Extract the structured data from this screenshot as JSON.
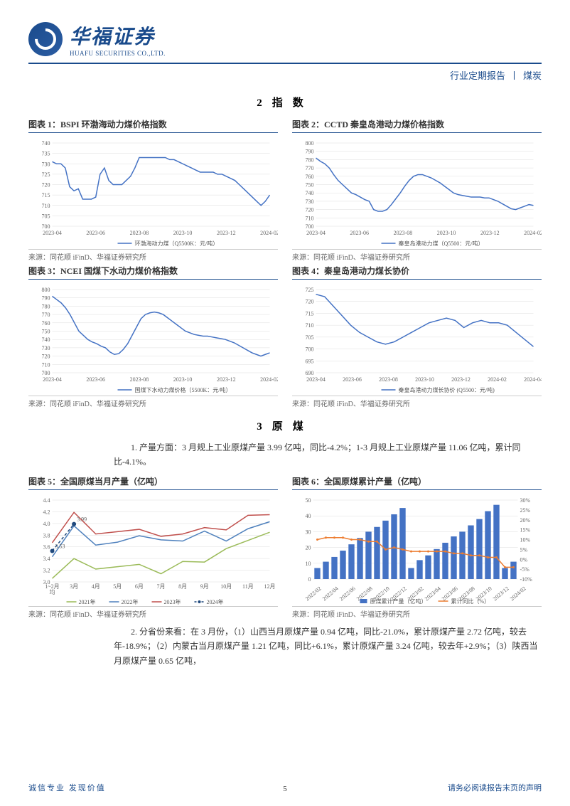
{
  "header": {
    "company_cn": "华福证券",
    "company_en": "HUAFU SECURITIES CO.,LTD.",
    "doc_type": "行业定期报告",
    "doc_category": "煤炭"
  },
  "section2": {
    "number": "2",
    "title": "指数"
  },
  "chart1": {
    "title": "图表 1：BSPI 环渤海动力煤价格指数",
    "type": "line",
    "legend": "环渤海动力煤（Q5500K：元/吨）",
    "xlabels": [
      "2023-04",
      "2023-06",
      "2023-08",
      "2023-10",
      "2023-12",
      "2024-02"
    ],
    "ymin": 700,
    "ymax": 740,
    "ytick": 5,
    "values": [
      731,
      730,
      730,
      728,
      719,
      717,
      718,
      713,
      713,
      713,
      714,
      725,
      728,
      722,
      720,
      720,
      720,
      722,
      724,
      728,
      733,
      733,
      733,
      733,
      733,
      733,
      733,
      732,
      732,
      731,
      730,
      729,
      728,
      727,
      726,
      726,
      726,
      726,
      725,
      725,
      724,
      723,
      722,
      720,
      718,
      716,
      714,
      712,
      710,
      712,
      715
    ],
    "line_color": "#4472c4",
    "bg": "#ffffff",
    "source": "来源：同花顺 iFinD、华福证券研究所"
  },
  "chart2": {
    "title": "图表 2：CCTD 秦皇岛港动力煤价格指数",
    "type": "line",
    "legend": "秦皇岛港动力煤（Q5500：元/吨）",
    "xlabels": [
      "2023-04",
      "2023-06",
      "2023-08",
      "2023-10",
      "2023-12",
      "2024-02"
    ],
    "ymin": 700,
    "ymax": 800,
    "ytick": 10,
    "values": [
      782,
      778,
      775,
      770,
      762,
      755,
      750,
      745,
      740,
      738,
      735,
      732,
      730,
      720,
      718,
      718,
      720,
      726,
      733,
      740,
      748,
      755,
      760,
      762,
      762,
      760,
      758,
      755,
      752,
      748,
      744,
      740,
      738,
      737,
      736,
      735,
      735,
      735,
      734,
      734,
      732,
      730,
      727,
      724,
      721,
      720,
      722,
      724,
      726,
      725
    ],
    "line_color": "#4472c4",
    "bg": "#ffffff",
    "source": "来源：同花顺 iFinD、华福证券研究所"
  },
  "chart3": {
    "title": "图表 3：NCEI 国煤下水动力煤价格指数",
    "type": "line",
    "legend": "国煤下水动力煤价格（5500K：元/吨）",
    "xlabels": [
      "2023-04",
      "2023-06",
      "2023-08",
      "2023-10",
      "2023-12",
      "2024-02"
    ],
    "ymin": 700,
    "ymax": 800,
    "ytick": 10,
    "values": [
      792,
      788,
      784,
      778,
      770,
      760,
      750,
      745,
      740,
      737,
      735,
      732,
      730,
      725,
      722,
      723,
      728,
      735,
      745,
      755,
      765,
      770,
      772,
      773,
      772,
      770,
      766,
      762,
      758,
      754,
      750,
      748,
      746,
      745,
      744,
      744,
      743,
      742,
      741,
      740,
      738,
      736,
      733,
      730,
      727,
      724,
      722,
      720,
      722,
      724
    ],
    "line_color": "#4472c4",
    "bg": "#ffffff",
    "source": "来源：同花顺 iFinD、华福证券研究所"
  },
  "chart4": {
    "title": "图表 4：秦皇岛港动力煤长协价",
    "type": "line",
    "legend": "秦皇岛港动力煤长协价 (Q5500：元/吨)",
    "xlabels": [
      "2023-04",
      "2023-06",
      "2023-08",
      "2023-10",
      "2023-12",
      "2024-02",
      "2024-04"
    ],
    "ymin": 690,
    "ymax": 725,
    "ytick": 5,
    "values": [
      723,
      722,
      718,
      714,
      710,
      707,
      705,
      703,
      702,
      703,
      705,
      707,
      709,
      711,
      712,
      713,
      712,
      709,
      711,
      712,
      711,
      711,
      710,
      707,
      704,
      701
    ],
    "line_color": "#4472c4",
    "bg": "#ffffff",
    "source": "来源：同花顺 iFinD、华福证券研究所"
  },
  "section3": {
    "number": "3",
    "title": "原煤",
    "para1": "1. 产量方面：3 月规上工业原煤产量 3.99 亿吨，同比-4.2%；1-3 月规上工业原煤产量 11.06 亿吨，累计同比-4.1%。",
    "para2": "2. 分省份来看：在 3 月份，（1）山西当月原煤产量 0.94 亿吨，同比-21.0%，累计原煤产量 2.72 亿吨，较去年-18.9%；（2）内蒙古当月原煤产量 1.21 亿吨，同比+6.1%，累计原煤产量 3.24 亿吨，较去年+2.9%；（3）陕西当月原煤产量 0.65 亿吨，"
  },
  "chart5": {
    "title": "图表 5：全国原煤当月产量（亿吨）",
    "type": "multiline",
    "xlabels": [
      "1~2月\n均",
      "3月",
      "4月",
      "5月",
      "6月",
      "7月",
      "8月",
      "9月",
      "10月",
      "11月",
      "12月"
    ],
    "ymin": 3.0,
    "ymax": 4.4,
    "ytick": 0.2,
    "series": [
      {
        "name": "2021年",
        "color": "#9bbb59",
        "values": [
          3.06,
          3.4,
          3.22,
          3.26,
          3.3,
          3.14,
          3.35,
          3.34,
          3.57,
          3.71,
          3.85
        ]
      },
      {
        "name": "2022年",
        "color": "#4f81bd",
        "values": [
          3.43,
          3.96,
          3.63,
          3.68,
          3.79,
          3.72,
          3.7,
          3.87,
          3.7,
          3.91,
          4.03
        ]
      },
      {
        "name": "2023年",
        "color": "#c0504d",
        "values": [
          3.67,
          4.19,
          3.82,
          3.86,
          3.9,
          3.78,
          3.82,
          3.93,
          3.89,
          4.14,
          4.15
        ]
      },
      {
        "name": "2024年",
        "color": "#1f497d",
        "values": [
          3.53,
          3.99
        ],
        "dashed": true,
        "marker": true,
        "labels": [
          "3.53",
          "3.99"
        ]
      }
    ],
    "source": "来源：同花顺 iFinD、华福证券研究所"
  },
  "chart6": {
    "title": "图表 6：全国原煤累计产量（亿吨）",
    "type": "bar_line",
    "xlabels": [
      "2022/02",
      "2022/04",
      "2022/06",
      "2022/08",
      "2022/10",
      "2022/12",
      "2023/02",
      "2023/04",
      "2023/06",
      "2023/08",
      "2023/10",
      "2023/12",
      "2024/02"
    ],
    "y1min": 0,
    "y1max": 50,
    "y1tick": 10,
    "y2min": -10,
    "y2max": 30,
    "y2tick": 5,
    "bar_values": [
      7,
      11,
      14,
      18,
      22,
      26,
      30,
      33,
      37,
      41,
      45,
      7,
      12,
      15,
      19,
      23,
      27,
      30,
      34,
      38,
      43,
      47,
      7,
      11
    ],
    "bar_color": "#4472c4",
    "line_values": [
      10,
      11,
      11,
      11,
      10,
      10,
      9,
      9,
      5,
      6,
      5,
      4,
      4,
      4,
      4,
      4,
      3,
      3,
      2,
      2,
      1,
      1,
      -4,
      -4
    ],
    "line_color": "#ed7d31",
    "legend_bar": "原煤累计产量（亿吨）",
    "legend_line": "累计同比（%）",
    "source": "来源：同花顺 iFinD、华福证券研究所"
  },
  "footer": {
    "left": "诚信专业  发现价值",
    "right": "请务必阅读报告末页的声明",
    "page": "5"
  }
}
